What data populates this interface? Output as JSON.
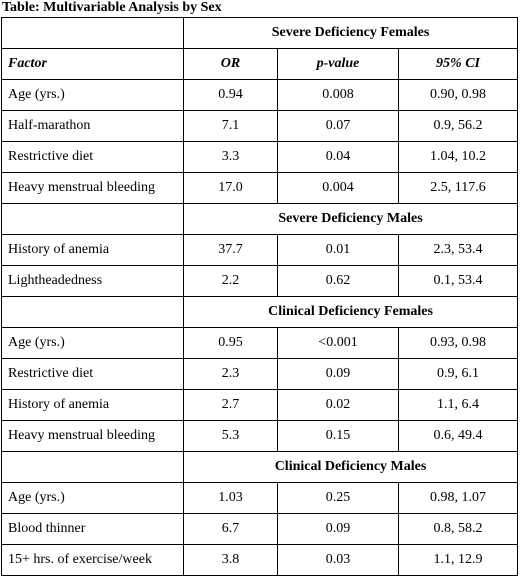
{
  "title": "Table: Multivariable Analysis by Sex",
  "headers": {
    "factor": "Factor",
    "or": "OR",
    "p": "p-value",
    "ci": "95% CI"
  },
  "groups": [
    {
      "title": "Severe Deficiency Females",
      "rows": [
        {
          "factor": "Age (yrs.)",
          "or": "0.94",
          "p": "0.008",
          "ci": "0.90, 0.98"
        },
        {
          "factor": "Half-marathon",
          "or": "7.1",
          "p": "0.07",
          "ci": "0.9, 56.2"
        },
        {
          "factor": "Restrictive diet",
          "or": "3.3",
          "p": "0.04",
          "ci": "1.04, 10.2"
        },
        {
          "factor": "Heavy menstrual bleeding",
          "or": "17.0",
          "p": "0.004",
          "ci": "2.5, 117.6"
        }
      ]
    },
    {
      "title": "Severe Deficiency Males",
      "rows": [
        {
          "factor": "History of anemia",
          "or": "37.7",
          "p": "0.01",
          "ci": "2.3, 53.4"
        },
        {
          "factor": "Lightheadedness",
          "or": "2.2",
          "p": "0.62",
          "ci": "0.1, 53.4"
        }
      ]
    },
    {
      "title": "Clinical Deficiency Females",
      "rows": [
        {
          "factor": "Age (yrs.)",
          "or": "0.95",
          "p": "<0.001",
          "ci": "0.93, 0.98"
        },
        {
          "factor": "Restrictive diet",
          "or": "2.3",
          "p": "0.09",
          "ci": "0.9, 6.1"
        },
        {
          "factor": "History of anemia",
          "or": "2.7",
          "p": "0.02",
          "ci": "1.1, 6.4"
        },
        {
          "factor": "Heavy menstrual bleeding",
          "or": "5.3",
          "p": "0.15",
          "ci": "0.6, 49.4"
        }
      ]
    },
    {
      "title": "Clinical Deficiency Males",
      "rows": [
        {
          "factor": "Age (yrs.)",
          "or": "1.03",
          "p": "0.25",
          "ci": "0.98, 1.07"
        },
        {
          "factor": "Blood thinner",
          "or": "6.7",
          "p": "0.09",
          "ci": "0.8, 58.2"
        },
        {
          "factor": "15+ hrs. of exercise/week",
          "or": "3.8",
          "p": "0.03",
          "ci": "1.1, 12.9"
        }
      ]
    }
  ]
}
